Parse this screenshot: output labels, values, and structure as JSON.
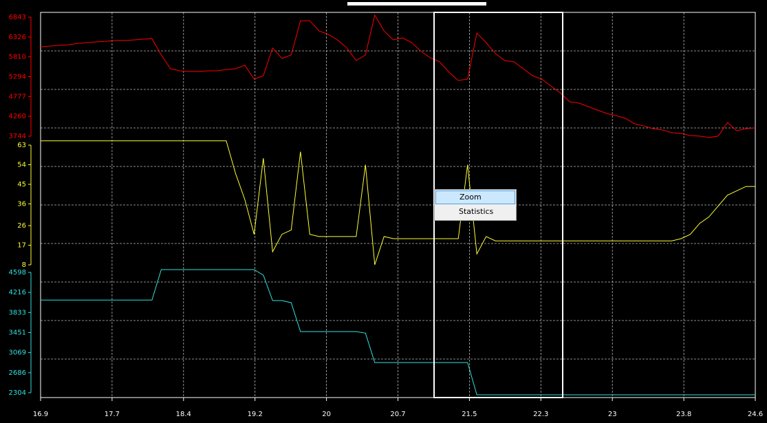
{
  "chart_data": {
    "type": "line",
    "x": [
      16.9,
      17.0,
      17.1,
      17.2,
      17.3,
      17.4,
      17.5,
      17.6,
      17.7,
      17.8,
      17.9,
      18.0,
      18.1,
      18.2,
      18.3,
      18.4,
      18.5,
      18.6,
      18.7,
      18.8,
      18.9,
      19.0,
      19.1,
      19.2,
      19.3,
      19.4,
      19.5,
      19.6,
      19.7,
      19.8,
      19.9,
      20.0,
      20.1,
      20.2,
      20.3,
      20.4,
      20.5,
      20.6,
      20.7,
      20.8,
      20.9,
      21.0,
      21.1,
      21.2,
      21.3,
      21.4,
      21.5,
      21.6,
      21.7,
      21.8,
      21.9,
      22.0,
      22.1,
      22.2,
      22.3,
      22.4,
      22.5,
      22.6,
      22.7,
      22.8,
      22.9,
      23.0,
      23.1,
      23.2,
      23.3,
      23.4,
      23.5,
      23.6,
      23.7,
      23.8,
      23.9,
      24.0,
      24.1,
      24.2,
      24.3,
      24.4,
      24.5,
      24.6
    ],
    "xlim": [
      16.9,
      24.6
    ],
    "xticks": [
      16.9,
      {
        "value": 17.67,
        "label": "17.7"
      },
      {
        "value": 18.44,
        "label": "18.4"
      },
      {
        "value": 19.21,
        "label": "19.2"
      },
      {
        "value": 19.98,
        "label": "20"
      },
      {
        "value": 20.75,
        "label": "20.7"
      },
      {
        "value": 21.52,
        "label": "21.5"
      },
      {
        "value": 22.29,
        "label": "22.3"
      },
      {
        "value": 23.06,
        "label": "23"
      },
      {
        "value": 23.83,
        "label": "23.8"
      },
      24.6
    ],
    "grid": true,
    "series": [
      {
        "color": "#ff0000",
        "ylim": [
          3744,
          6843
        ],
        "yticks": [
          3744,
          4260,
          4777,
          5294,
          5810,
          6326,
          6843
        ],
        "values": [
          6070,
          6090,
          6110,
          6125,
          6160,
          6180,
          6200,
          6215,
          6235,
          6235,
          6250,
          6270,
          6285,
          5860,
          5500,
          5445,
          5430,
          5430,
          5445,
          5445,
          5480,
          5500,
          5590,
          5230,
          5320,
          6040,
          5770,
          5860,
          6750,
          6750,
          6485,
          6395,
          6250,
          6040,
          5715,
          5860,
          6900,
          6485,
          6250,
          6305,
          6180,
          5950,
          5785,
          5680,
          5410,
          5195,
          5230,
          6430,
          6180,
          5895,
          5715,
          5680,
          5500,
          5320,
          5230,
          5050,
          4870,
          4640,
          4605,
          4515,
          4425,
          4335,
          4280,
          4210,
          4065,
          4010,
          3940,
          3905,
          3835,
          3815,
          3760,
          3745,
          3710,
          3745,
          4100,
          3885,
          3940,
          3960
        ]
      },
      {
        "color": "#ffff33",
        "ylim": [
          8,
          63
        ],
        "yticks": [
          8,
          17,
          26,
          36,
          45,
          54,
          63
        ],
        "values": [
          65,
          65,
          65,
          65,
          65,
          65,
          65,
          65,
          65,
          65,
          65,
          65,
          65,
          65,
          65,
          65,
          65,
          65,
          65,
          65,
          65,
          50,
          38,
          22,
          57,
          14,
          22,
          24,
          60,
          22,
          21,
          21,
          21,
          21,
          21,
          54,
          8,
          21,
          20,
          20,
          20,
          20,
          20,
          20,
          20,
          20,
          54,
          13,
          21,
          19,
          19,
          19,
          19,
          19,
          19,
          19,
          19,
          19,
          19,
          19,
          19,
          19,
          19,
          19,
          19,
          19,
          19,
          19,
          19,
          20,
          22,
          27,
          30,
          35,
          40,
          42,
          44,
          44
        ]
      },
      {
        "color": "#33e0e0",
        "ylim": [
          2304,
          4598
        ],
        "yticks": [
          2304,
          2686,
          3069,
          3451,
          3833,
          4216,
          4598
        ],
        "values": [
          4070,
          4070,
          4070,
          4070,
          4070,
          4070,
          4070,
          4070,
          4070,
          4070,
          4070,
          4070,
          4070,
          4650,
          4650,
          4650,
          4650,
          4650,
          4650,
          4650,
          4650,
          4650,
          4650,
          4650,
          4545,
          4060,
          4060,
          4020,
          3470,
          3470,
          3470,
          3470,
          3470,
          3470,
          3470,
          3440,
          2880,
          2880,
          2880,
          2880,
          2880,
          2880,
          2880,
          2880,
          2880,
          2880,
          2880,
          2265,
          2265,
          2265,
          2265,
          2265,
          2265,
          2265,
          2265,
          2265,
          2265,
          2265,
          2265,
          2265,
          2265,
          2265,
          2265,
          2265,
          2265,
          2265,
          2265,
          2265,
          2265,
          2265,
          2265,
          2265,
          2265,
          2265,
          2265,
          2265,
          2265,
          2265
        ]
      }
    ]
  },
  "menu": {
    "items": [
      "Zoom",
      "Statistics"
    ]
  }
}
